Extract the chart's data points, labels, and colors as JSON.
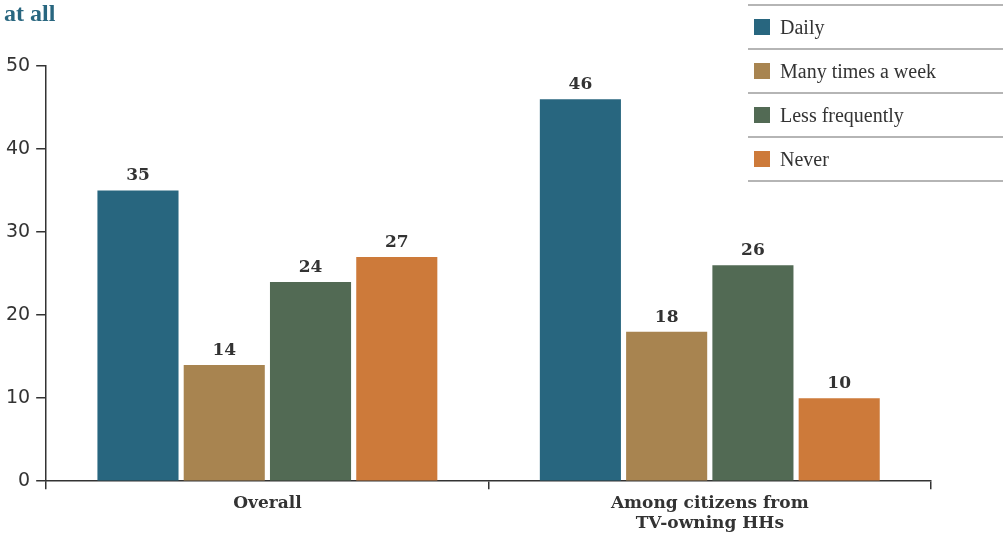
{
  "chart_data": {
    "type": "bar",
    "title": "at all",
    "categories": [
      "Overall",
      "Among citizens from TV-owning HHs"
    ],
    "series": [
      {
        "name": "Daily",
        "color": "#28667f",
        "values": [
          35,
          46
        ]
      },
      {
        "name": "Many times a week",
        "color": "#a88450",
        "values": [
          14,
          18
        ]
      },
      {
        "name": "Less frequently",
        "color": "#526a54",
        "values": [
          24,
          26
        ]
      },
      {
        "name": "Never",
        "color": "#cd7a3a",
        "values": [
          27,
          10
        ]
      }
    ],
    "ylim": [
      0,
      50
    ],
    "yticks": [
      0,
      10,
      20,
      30,
      40,
      50
    ],
    "grid": false,
    "legend": "top right",
    "data_labels": true
  }
}
